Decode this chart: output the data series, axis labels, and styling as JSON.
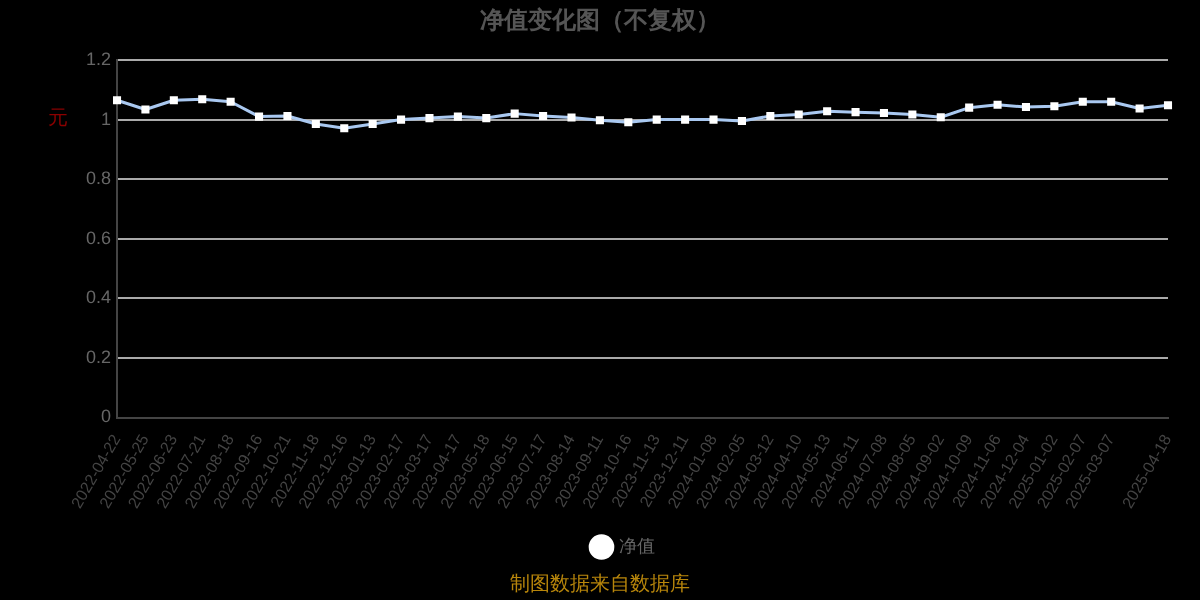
{
  "chart_data": {
    "type": "line",
    "title": "净值变化图（不复权）",
    "ylabel": "元",
    "categories": [
      "2022-04-22",
      "2022-05-25",
      "2022-06-23",
      "2022-07-21",
      "2022-08-18",
      "2022-09-16",
      "2022-10-21",
      "2022-11-18",
      "2022-12-16",
      "2023-01-13",
      "2023-02-17",
      "2023-03-17",
      "2023-04-17",
      "2023-05-18",
      "2023-06-15",
      "2023-07-17",
      "2023-08-14",
      "2023-09-11",
      "2023-10-16",
      "2023-11-13",
      "2023-12-11",
      "2024-01-08",
      "2024-02-05",
      "2024-03-12",
      "2024-04-10",
      "2024-05-13",
      "2024-06-11",
      "2024-07-08",
      "2024-08-05",
      "2024-09-02",
      "2024-10-09",
      "2024-11-06",
      "2024-12-04",
      "2025-01-02",
      "2025-02-07",
      "2025-03-07",
      null,
      "2025-04-18"
    ],
    "series": [
      {
        "name": "净值",
        "color": "#a9c8f0",
        "values": [
          1.065,
          1.034,
          1.065,
          1.068,
          1.06,
          1.01,
          1.012,
          0.985,
          0.971,
          0.985,
          1.0,
          1.005,
          1.01,
          1.005,
          1.02,
          1.012,
          1.007,
          0.998,
          0.991,
          1.0,
          1.0,
          1.0,
          0.995,
          1.012,
          1.017,
          1.028,
          1.025,
          1.022,
          1.017,
          1.008,
          1.04,
          1.05,
          1.042,
          1.045,
          1.06,
          1.06,
          1.037,
          1.048
        ]
      }
    ],
    "ylim": [
      0,
      1.2
    ],
    "yticks": [
      0,
      0.2,
      0.4,
      0.6,
      0.8,
      1,
      1.2
    ],
    "grid": "y",
    "legend": "bottom",
    "marker": "square",
    "line_style": "solid",
    "annotations": [
      "制图数据来自数据库"
    ]
  }
}
